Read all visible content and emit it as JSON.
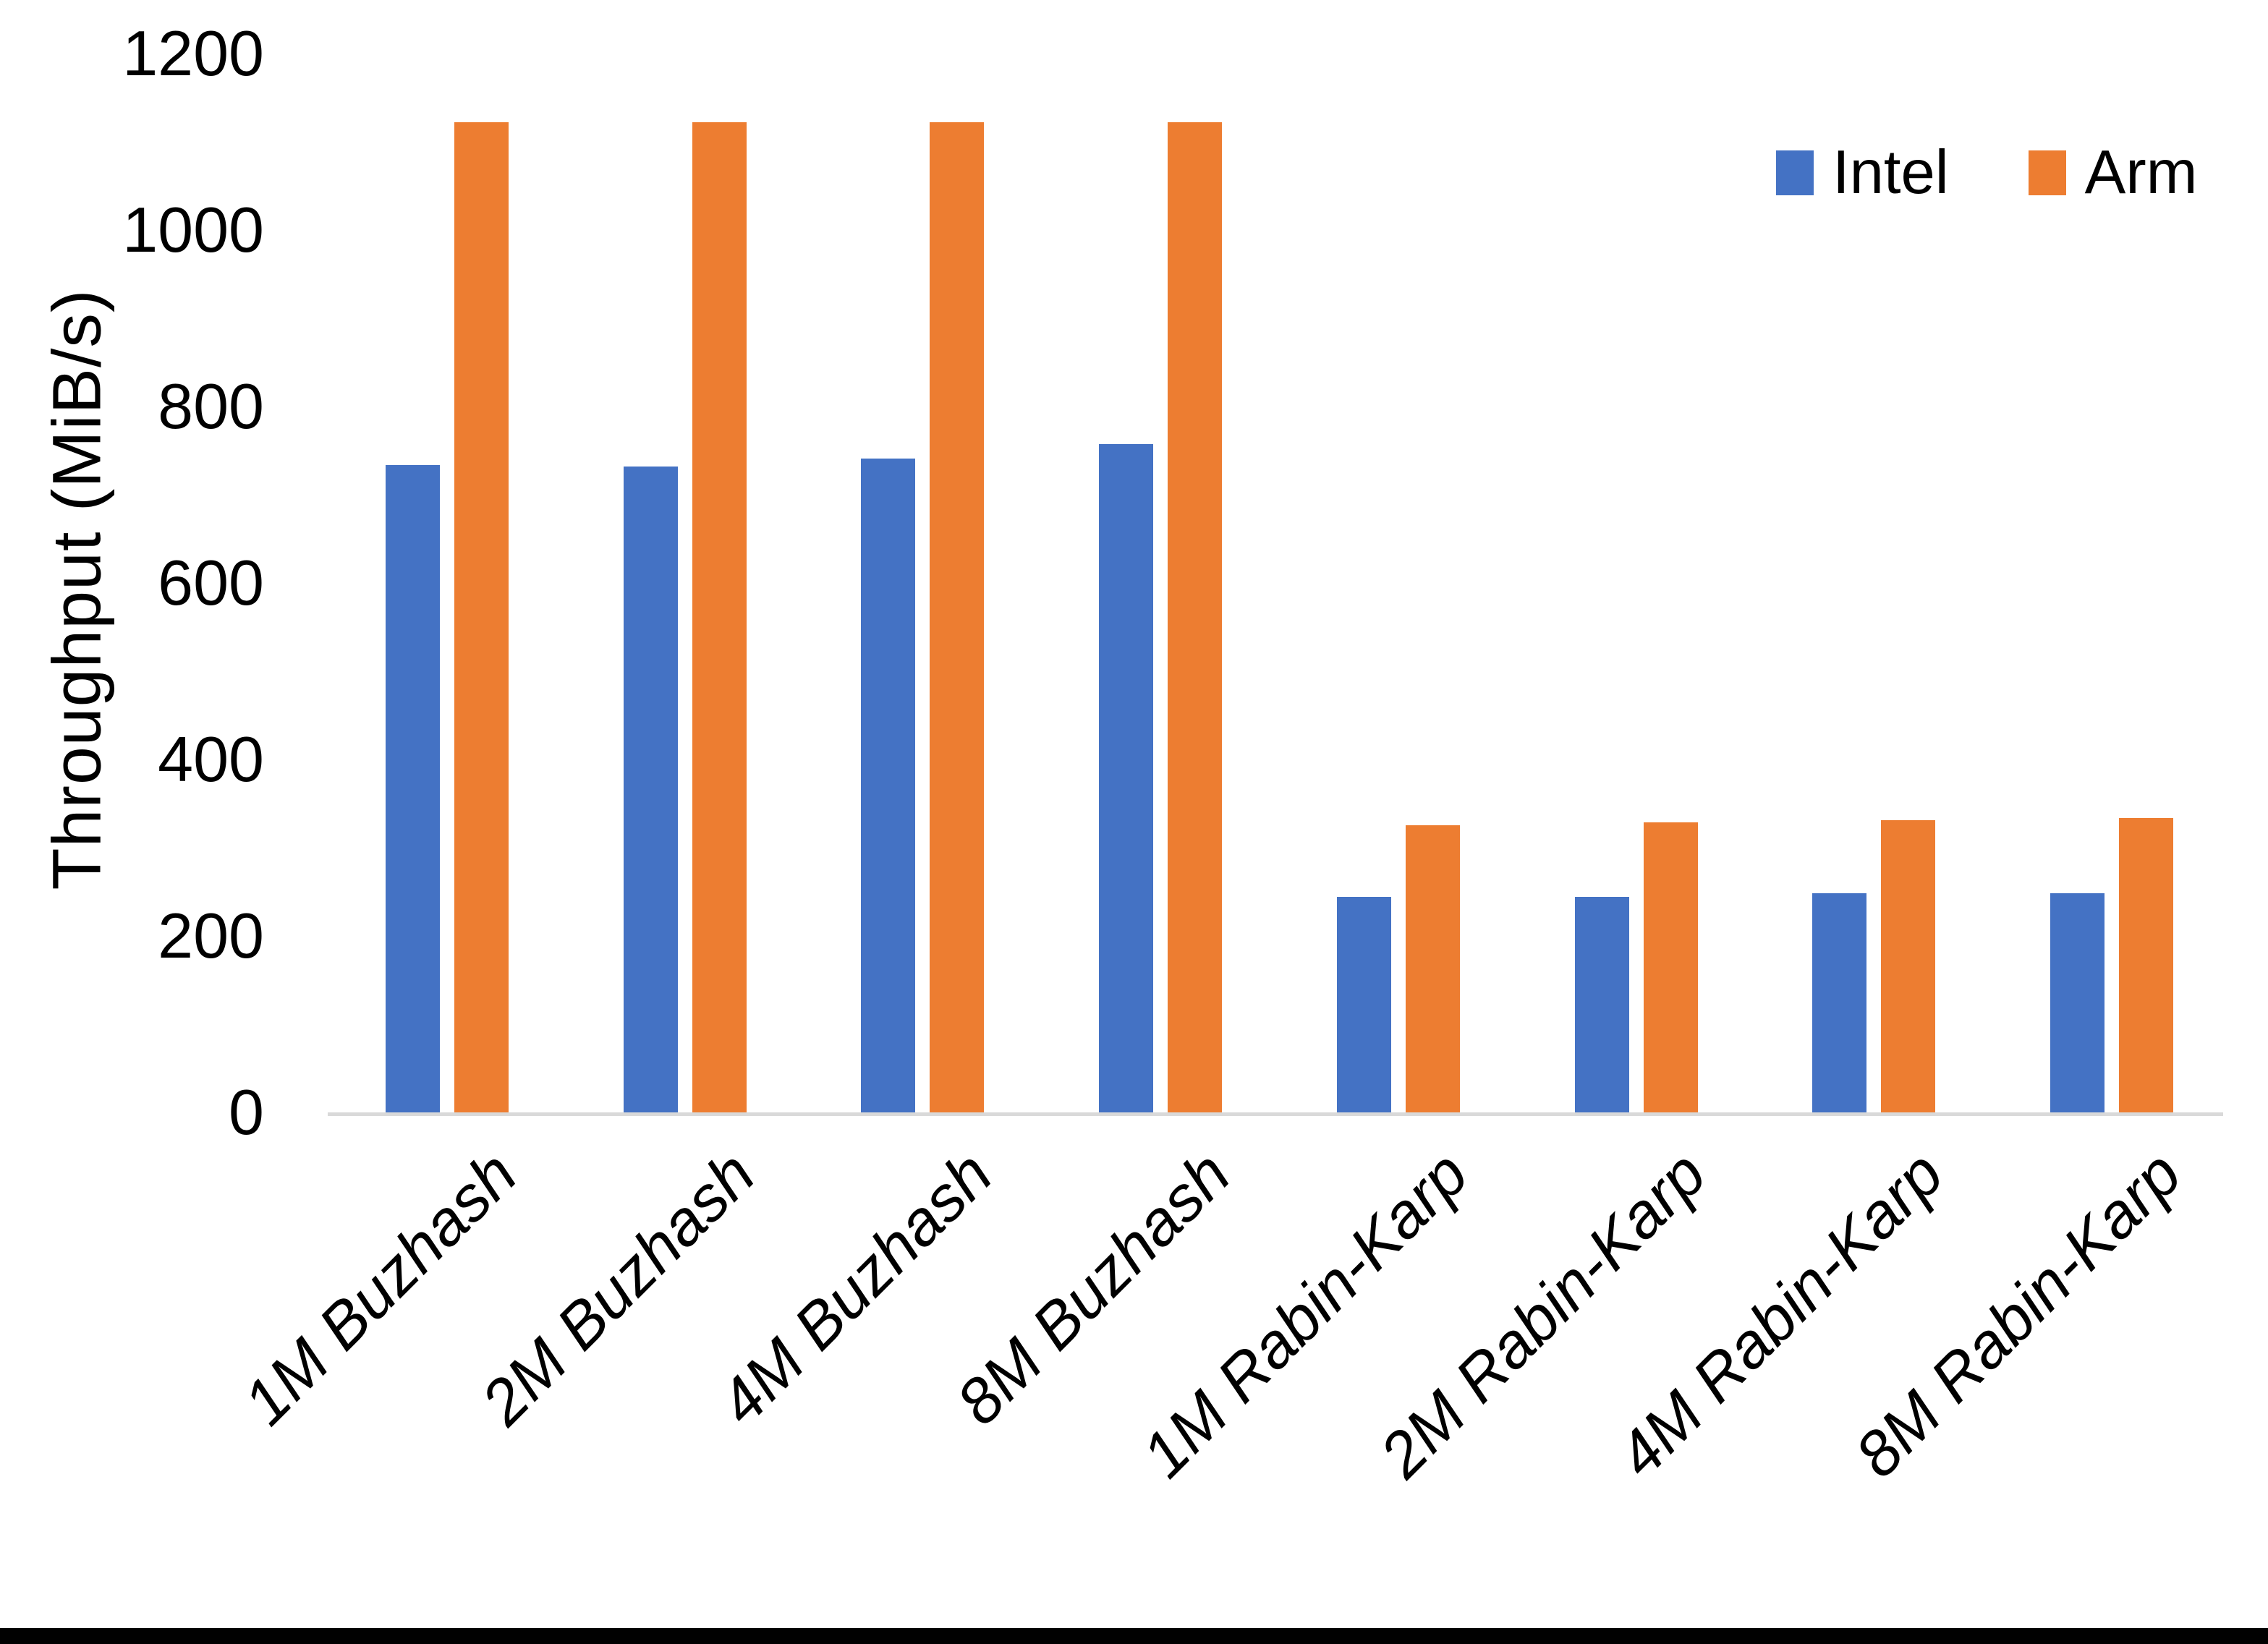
{
  "chart_data": {
    "type": "bar",
    "categories": [
      "1M Buzhash",
      "2M Buzhash",
      "4M Buzhash",
      "8M Buzhash",
      "1M Rabin-Karp",
      "2M Rabin-Karp",
      "4M Rabin-Karp",
      "8M Rabin-Karp"
    ],
    "series": [
      {
        "name": "Intel",
        "color": "#4472C4",
        "values": [
          735,
          734,
          743,
          759,
          246,
          246,
          250,
          250
        ]
      },
      {
        "name": "Arm",
        "color": "#ED7D31",
        "values": [
          1124,
          1124,
          1124,
          1124,
          327,
          330,
          333,
          335
        ]
      }
    ],
    "title": "",
    "xlabel": "",
    "ylabel": "Throughput (MiB/s)",
    "ylim": [
      0,
      1200
    ],
    "yticks": [
      0,
      200,
      400,
      600,
      800,
      1000,
      1200
    ],
    "grid": false,
    "legend_position": "top-right"
  }
}
